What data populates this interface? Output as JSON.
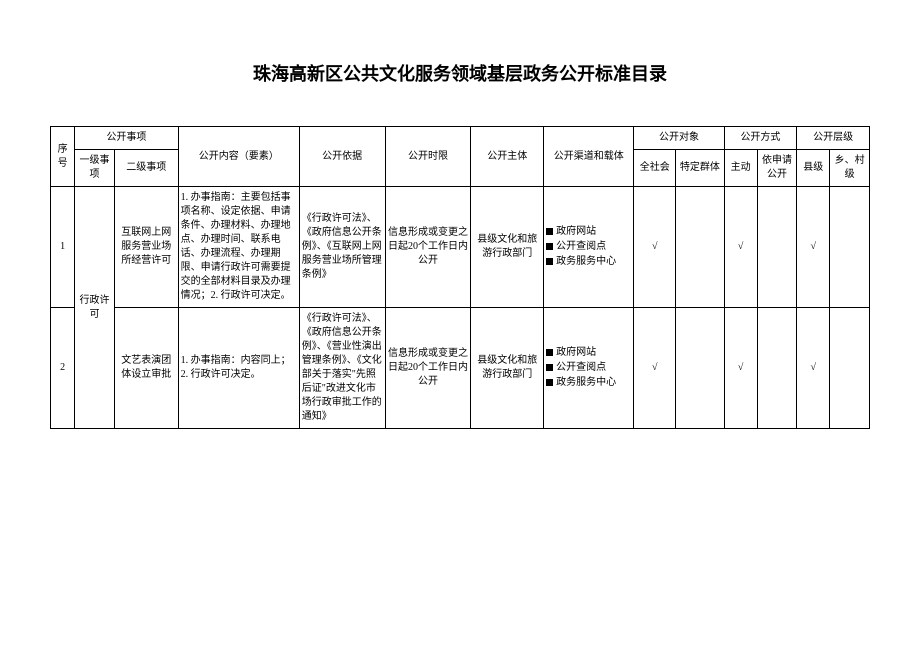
{
  "title": "珠海高新区公共文化服务领域基层政务公开标准目录",
  "headers": {
    "seq": "序号",
    "matter_group": "公开事项",
    "matter_l1": "一级事项",
    "matter_l2": "二级事项",
    "content": "公开内容（要素）",
    "basis": "公开依据",
    "timelimit": "公开时限",
    "subject": "公开主体",
    "channel": "公开渠道和载体",
    "target_group": "公开对象",
    "target_all": "全社会",
    "target_spec": "特定群体",
    "method_group": "公开方式",
    "method_active": "主动",
    "method_apply": "依申请公开",
    "level_group": "公开层级",
    "level_county": "县级",
    "level_village": "乡、村级"
  },
  "rows": [
    {
      "seq": "1",
      "l1": "行政许可",
      "l2": "互联网上网服务营业场所经营许可",
      "content": "1. 办事指南：主要包括事项名称、设定依据、申请条件、办理材料、办理地点、办理时间、联系电话、办理流程、办理期限、申请行政许可需要提交的全部材料目录及办理情况；2. 行政许可决定。",
      "basis": "《行政许可法》、《政府信息公开条例》、《互联网上网服务营业场所管理条例》",
      "timelimit": "信息形成或变更之日起20个工作日内公开",
      "subject": "县级文化和旅游行政部门",
      "channels": [
        "政府网站",
        "公开查阅点",
        "政务服务中心"
      ],
      "target_all": "√",
      "target_spec": "",
      "method_active": "√",
      "method_apply": "",
      "level_county": "√",
      "level_village": ""
    },
    {
      "seq": "2",
      "l1": "",
      "l2": "文艺表演团体设立审批",
      "content": "1. 办事指南：内容同上；\n2. 行政许可决定。",
      "basis": "《行政许可法》、《政府信息公开条例》、《营业性演出管理条例》、《文化部关于落实\"先照后证\"改进文化市场行政审批工作的通知》",
      "timelimit": "信息形成或变更之日起20个工作日内公开",
      "subject": "县级文化和旅游行政部门",
      "channels": [
        "政府网站",
        "公开查阅点",
        "政务服务中心"
      ],
      "target_all": "√",
      "target_spec": "",
      "method_active": "√",
      "method_apply": "",
      "level_county": "√",
      "level_village": ""
    }
  ]
}
